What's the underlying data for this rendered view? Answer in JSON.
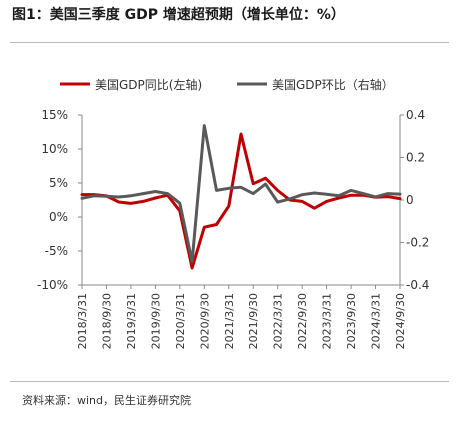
{
  "figure": {
    "title": "图1：美国三季度 GDP 增速超预期（增长单位：%）",
    "source": "资料来源：wind，民生证券研究院"
  },
  "chart_data": {
    "type": "line",
    "x_ticks": [
      "2018/3/31",
      "2018/9/30",
      "2019/3/31",
      "2019/9/30",
      "2020/3/31",
      "2020/9/30",
      "2021/3/31",
      "2021/9/30",
      "2022/3/31",
      "2022/9/30",
      "2023/3/31",
      "2023/9/30",
      "2024/3/31",
      "2024/9/30"
    ],
    "x_quarters": [
      "2018Q1",
      "2018Q2",
      "2018Q3",
      "2018Q4",
      "2019Q1",
      "2019Q2",
      "2019Q3",
      "2019Q4",
      "2020Q1",
      "2020Q2",
      "2020Q3",
      "2020Q4",
      "2021Q1",
      "2021Q2",
      "2021Q3",
      "2021Q4",
      "2022Q1",
      "2022Q2",
      "2022Q3",
      "2022Q4",
      "2023Q1",
      "2023Q2",
      "2023Q3",
      "2023Q4",
      "2024Q1",
      "2024Q2",
      "2024Q3"
    ],
    "y_left": {
      "ticks": [
        "15%",
        "10%",
        "5%",
        "0%",
        "-5%",
        "-10%"
      ],
      "tick_values": [
        15,
        10,
        5,
        0,
        -5,
        -10
      ],
      "range": [
        -10,
        15
      ]
    },
    "y_right": {
      "ticks": [
        "0.4",
        "0.2",
        "0",
        "-0.2",
        "-0.4"
      ],
      "tick_values": [
        0.4,
        0.2,
        0,
        -0.2,
        -0.4
      ],
      "range": [
        -0.4,
        0.4
      ]
    },
    "legend_position": "top-center",
    "series": [
      {
        "name": "美国GDP同比(左轴)",
        "axis": "left",
        "color": "#c00000",
        "values": [
          3.3,
          3.3,
          3.1,
          2.2,
          2.0,
          2.3,
          2.8,
          3.2,
          0.9,
          -7.5,
          -1.5,
          -1.1,
          1.6,
          12.2,
          4.9,
          5.7,
          3.9,
          2.5,
          2.3,
          1.3,
          2.3,
          2.8,
          3.2,
          3.2,
          2.9,
          3.0,
          2.7
        ]
      },
      {
        "name": "美国GDP环比（右轴）",
        "axis": "right",
        "color": "#595959",
        "values": [
          0.008,
          0.02,
          0.018,
          0.014,
          0.02,
          0.03,
          0.04,
          0.03,
          -0.015,
          -0.29,
          0.35,
          0.045,
          0.055,
          0.06,
          0.03,
          0.075,
          -0.01,
          0.005,
          0.025,
          0.033,
          0.027,
          0.02,
          0.045,
          0.03,
          0.014,
          0.03,
          0.028
        ]
      }
    ]
  }
}
